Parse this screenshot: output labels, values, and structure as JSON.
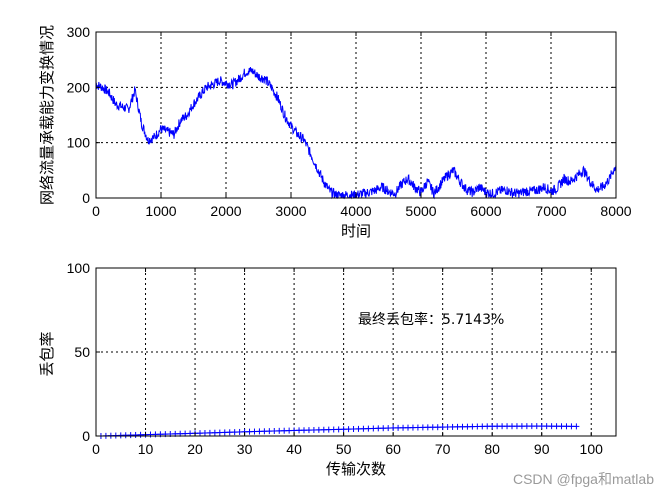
{
  "chart_data": [
    {
      "type": "line",
      "xlabel": "时间",
      "ylabel": "网络流量承载能力变换情况",
      "xlim": [
        0,
        8000
      ],
      "ylim": [
        0,
        300
      ],
      "xticks": [
        0,
        1000,
        2000,
        3000,
        4000,
        5000,
        6000,
        7000,
        8000
      ],
      "yticks": [
        0,
        100,
        200,
        300
      ],
      "grid": true,
      "series": [
        {
          "color": "#0000ff",
          "x": [
            0,
            100,
            200,
            300,
            400,
            500,
            600,
            700,
            800,
            900,
            1000,
            1100,
            1200,
            1300,
            1400,
            1500,
            1600,
            1700,
            1800,
            1900,
            2000,
            2100,
            2200,
            2300,
            2400,
            2500,
            2600,
            2700,
            2800,
            2900,
            3000,
            3100,
            3200,
            3300,
            3400,
            3500,
            3600,
            3700,
            3800,
            3900,
            4000,
            4100,
            4200,
            4300,
            4400,
            4500,
            4600,
            4700,
            4800,
            4900,
            5000,
            5100,
            5200,
            5300,
            5400,
            5500,
            5600,
            5700,
            5800,
            5900,
            6000,
            6100,
            6200,
            6300,
            6400,
            6500,
            6600,
            6700,
            6800,
            6900,
            7000,
            7100,
            7200,
            7300,
            7400,
            7500,
            7600,
            7700,
            7800,
            7900,
            8000
          ],
          "y": [
            205,
            200,
            190,
            170,
            165,
            160,
            195,
            135,
            105,
            110,
            125,
            120,
            115,
            140,
            150,
            170,
            185,
            200,
            205,
            212,
            208,
            205,
            215,
            228,
            230,
            220,
            215,
            200,
            180,
            150,
            130,
            115,
            105,
            80,
            55,
            30,
            12,
            5,
            5,
            5,
            5,
            8,
            10,
            14,
            20,
            12,
            8,
            25,
            35,
            20,
            10,
            30,
            8,
            25,
            40,
            50,
            30,
            15,
            10,
            20,
            10,
            8,
            12,
            15,
            10,
            8,
            12,
            12,
            15,
            20,
            12,
            18,
            35,
            30,
            40,
            50,
            30,
            15,
            20,
            35,
            60
          ]
        }
      ]
    },
    {
      "type": "line",
      "xlabel": "传输次数",
      "ylabel": "丢包率",
      "xlim": [
        0,
        105
      ],
      "ylim": [
        0,
        100
      ],
      "xticks": [
        0,
        10,
        20,
        30,
        40,
        50,
        60,
        70,
        80,
        90,
        100
      ],
      "yticks": [
        0,
        50,
        100
      ],
      "grid": true,
      "marker": "+",
      "annotation": "最终丢包率：5.7143%",
      "series": [
        {
          "color": "#0000ff",
          "x": [
            1,
            10,
            20,
            30,
            40,
            50,
            60,
            70,
            80,
            90,
            97
          ],
          "y": [
            0.0,
            0.8,
            1.6,
            2.5,
            3.3,
            4.0,
            4.8,
            5.3,
            5.8,
            5.9,
            5.7143
          ]
        }
      ]
    }
  ],
  "watermark": "CSDN @fpga和matlab"
}
